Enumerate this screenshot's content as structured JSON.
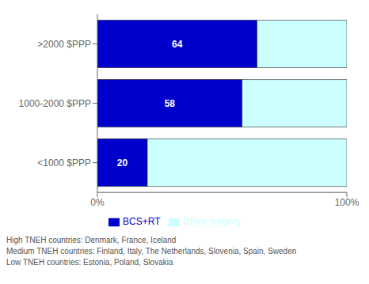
{
  "chart_data": {
    "type": "bar",
    "orientation": "horizontal",
    "stacked": true,
    "categories": [
      ">2000 $PPP",
      "1000-2000 $PPP",
      "<1000 $PPP"
    ],
    "series": [
      {
        "name": "BCS+RT",
        "color": "#0000CC",
        "values": [
          64,
          58,
          20
        ],
        "data_labels": true
      },
      {
        "name": "Other surgery",
        "color": "#CCFFFF",
        "values": [
          36,
          42,
          80
        ]
      }
    ],
    "xlim": [
      0,
      100
    ],
    "xticks": [
      {
        "value": 0,
        "label": "0%"
      },
      {
        "value": 100,
        "label": "100%"
      }
    ],
    "grid": false,
    "legend": "bottom",
    "annotations": [
      "High TNEH countries: Denmark, France, Iceland",
      "Medium TNEH countries: Finland, Italy, The Netherlands, Slovenia, Spain, Sweden",
      "Low TNEH countries: Estonia, Poland, Slovakia"
    ]
  }
}
